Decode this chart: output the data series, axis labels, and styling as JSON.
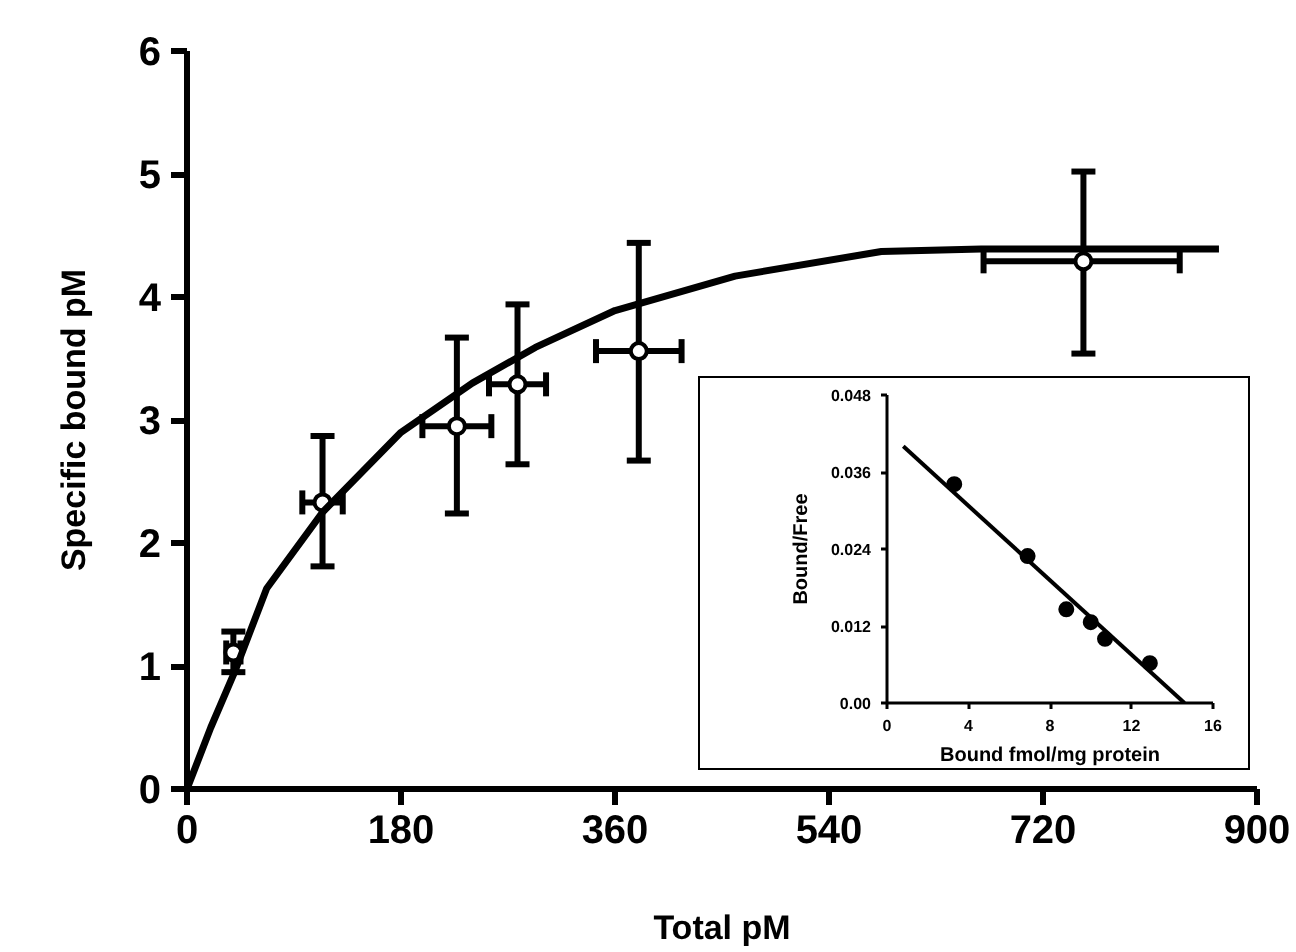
{
  "chart_data": [
    {
      "type": "scatter",
      "xlabel": "Total pM",
      "ylabel": "Specific bound pM",
      "xlim": [
        0,
        900
      ],
      "ylim": [
        0,
        6
      ],
      "xticks": [
        0,
        180,
        360,
        540,
        720,
        900
      ],
      "yticks": [
        0,
        1,
        2,
        3,
        4,
        5,
        6
      ],
      "grid": false,
      "marker": "circle",
      "series": [
        {
          "color": "#000000",
          "x": [
            39,
            114,
            227,
            278,
            380,
            754
          ],
          "values": [
            1.11,
            2.33,
            2.95,
            3.29,
            3.56,
            4.29
          ],
          "errors": [
            [
              0.95,
              1.28
            ],
            [
              1.81,
              2.87
            ],
            [
              2.24,
              3.67
            ],
            [
              2.64,
              3.94
            ],
            [
              2.67,
              4.44
            ],
            [
              3.54,
              5.02
            ]
          ],
          "xerrors": [
            6,
            17,
            29,
            24,
            36,
            [
              670,
              835
            ]
          ]
        },
        {
          "type": "line",
          "color": "#000000",
          "marker": "none",
          "line_style": "solid",
          "x": [
            0,
            20,
            40,
            67,
            114,
            180,
            240,
            293,
            360,
            461,
            584,
            668,
            868
          ],
          "values": [
            0,
            0.5,
            0.95,
            1.63,
            2.25,
            2.9,
            3.3,
            3.59,
            3.89,
            4.17,
            4.37,
            4.39,
            4.39
          ]
        }
      ]
    },
    {
      "type": "scatter",
      "xlabel": "Bound fmol/mg protein",
      "ylabel": "Bound/Free",
      "xlim": [
        0,
        16
      ],
      "ylim": [
        0,
        0.048
      ],
      "xticks": [
        0,
        4,
        8,
        12,
        16
      ],
      "yticks": [
        {
          "value": 0,
          "label": "0.00"
        },
        0.012,
        0.024,
        0.036,
        0.048
      ],
      "grid": false,
      "marker": "circle",
      "series": [
        {
          "color": "#000000",
          "x": [
            3.3,
            6.9,
            8.8,
            10.0,
            10.7,
            12.9
          ],
          "values": [
            0.0341,
            0.0229,
            0.0146,
            0.0126,
            0.01,
            0.0062
          ]
        },
        {
          "type": "line",
          "color": "#000000",
          "marker": "none",
          "line_style": "solid",
          "x": [
            0.8,
            14.6
          ],
          "values": [
            0.04,
            0
          ]
        }
      ]
    }
  ]
}
